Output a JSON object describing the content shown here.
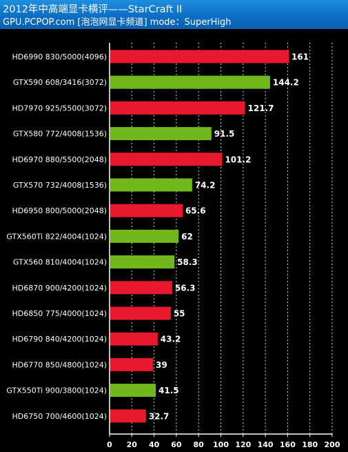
{
  "header": {
    "title": "2012年中高端显卡横评——StarCraft II",
    "subtitle": "GPU.PCPOP.com [泡泡网显卡频道] mode：SuperHigh"
  },
  "colors": {
    "header_bg": "#0d6ec4",
    "amd_bar": "#e8192c",
    "nvidia_bar": "#72b81c",
    "background": "#000000",
    "grid": "#ffffff"
  },
  "chart_data": {
    "type": "bar",
    "orientation": "horizontal",
    "title": "2012年中高端显卡横评——StarCraft II",
    "xlim": [
      0,
      200
    ],
    "xticks": [
      0,
      20,
      40,
      60,
      80,
      100,
      120,
      140,
      160,
      180,
      200
    ],
    "grid": true,
    "categories": [
      "HD6990 830/5000(4096)",
      "GTX590 608/3416(3072)",
      "HD7970 925/5500(3072)",
      "GTX580 772/4008(1536)",
      "HD6970 880/5500(2048)",
      "GTX570 732/4008(1536)",
      "HD6950 800/5000(2048)",
      "GTX560Ti 822/4004(1024)",
      "GTX560 810/4004(1024)",
      "HD6870 900/4200(1024)",
      "HD6850 775/4000(1024)",
      "HD6790 840/4200(1024)",
      "HD6770 850/4800(1024)",
      "GTX550Ti 900/3800(1024)",
      "HD6750 700/4600(1024)"
    ],
    "values": [
      161,
      144.2,
      121.7,
      91.5,
      101.2,
      74.2,
      65.6,
      62,
      58.3,
      56.3,
      55,
      43.2,
      39,
      41.5,
      32.7
    ],
    "value_labels": [
      "161",
      "144.2",
      "121.7",
      "91.5",
      "101.2",
      "74.2",
      "65.6",
      "62",
      "58.3",
      "56.3",
      "55",
      "43.2",
      "39",
      "41.5",
      "32.7"
    ],
    "bar_colors": [
      "#e8192c",
      "#72b81c",
      "#e8192c",
      "#72b81c",
      "#e8192c",
      "#72b81c",
      "#e8192c",
      "#72b81c",
      "#72b81c",
      "#e8192c",
      "#e8192c",
      "#e8192c",
      "#e8192c",
      "#72b81c",
      "#e8192c"
    ]
  }
}
